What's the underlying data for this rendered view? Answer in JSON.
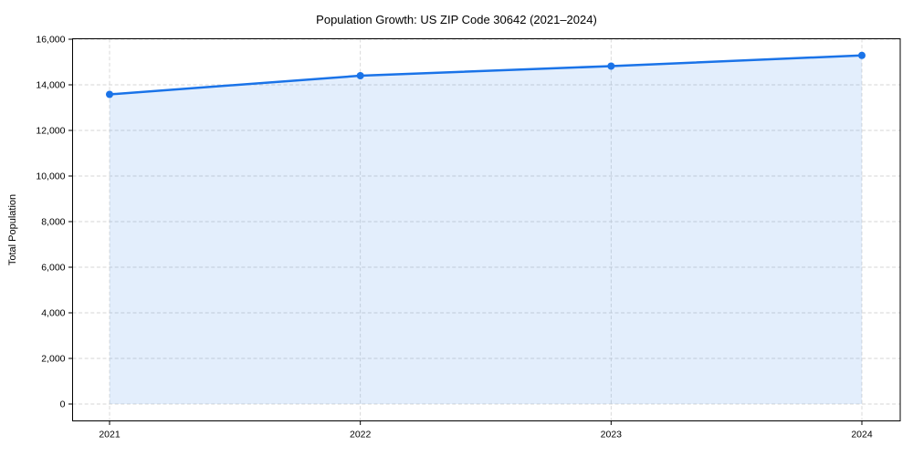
{
  "chart_data": {
    "type": "area",
    "title": "Population Growth: US ZIP Code 30642 (2021–2024)",
    "xlabel": "",
    "ylabel": "Total Population",
    "x": [
      "2021",
      "2022",
      "2023",
      "2024"
    ],
    "series": [
      {
        "name": "Total Population",
        "values": [
          13580,
          14400,
          14820,
          15290
        ]
      }
    ],
    "yticks": [
      0,
      2000,
      4000,
      6000,
      8000,
      10000,
      12000,
      14000,
      16000
    ],
    "ytick_labels": [
      "0",
      "2,000",
      "4,000",
      "6,000",
      "8,000",
      "10,000",
      "12,000",
      "14,000",
      "16,000"
    ],
    "ylim": [
      0,
      16000
    ],
    "grid": true,
    "grid_style": "dashed",
    "legend": "none",
    "marker": "circle",
    "colors": {
      "line": "#1a73e8",
      "marker": "#1a73e8",
      "area_fill": "rgba(26,115,232,0.12)",
      "grid": "#d6d6d6",
      "axis": "#000000",
      "text": "#000000",
      "background": "#ffffff"
    }
  }
}
